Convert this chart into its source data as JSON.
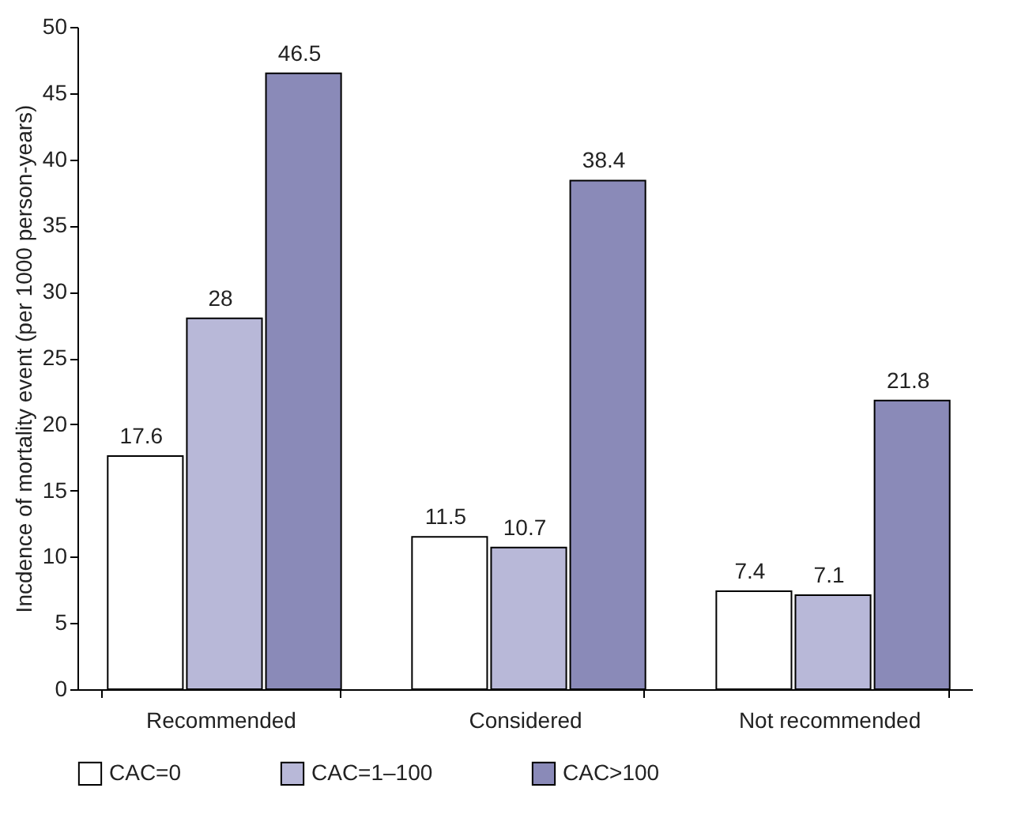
{
  "chart_data": {
    "type": "bar",
    "ylabel": "Incdence of mortality event (per 1000 person-years)",
    "categories": [
      "Recommended",
      "Considered",
      "Not recommended"
    ],
    "series": [
      {
        "name": "CAC=0",
        "color": "#ffffff",
        "values": [
          17.6,
          11.5,
          7.4
        ]
      },
      {
        "name": "CAC=1–100",
        "color": "#b8b8d8",
        "values": [
          28,
          10.7,
          7.1
        ]
      },
      {
        "name": "CAC>100",
        "color": "#8a8ab8",
        "values": [
          46.5,
          38.4,
          21.8
        ]
      }
    ],
    "ylim": [
      0,
      50
    ],
    "yticks": [
      0,
      5,
      10,
      15,
      20,
      25,
      30,
      35,
      40,
      45,
      50
    ],
    "data_labels": true,
    "legend": "bottom",
    "grid": false
  }
}
